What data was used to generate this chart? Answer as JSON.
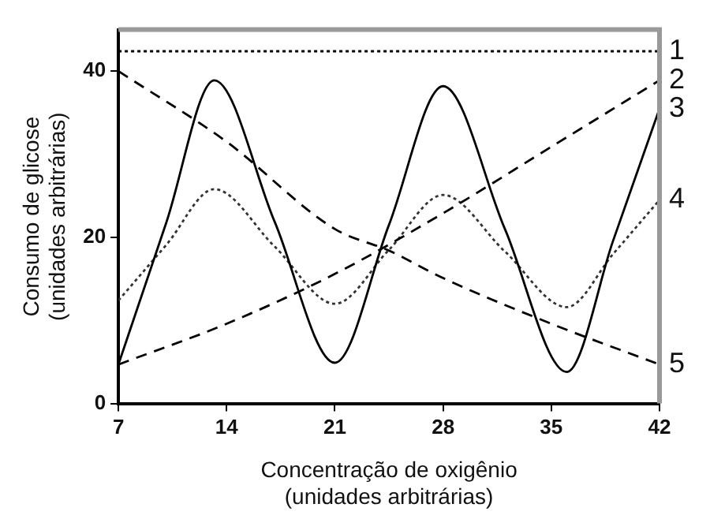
{
  "chart_data": {
    "type": "line",
    "xlabel": "Concentração de oxigênio\n(unidades arbitrárias)",
    "ylabel": "Consumo de glicose\n(unidades arbitrárias)",
    "xlim": [
      7,
      42
    ],
    "xticks": [
      7,
      14,
      21,
      28,
      35,
      42
    ],
    "ylim": [
      0,
      45
    ],
    "yticks": [
      0,
      20,
      40
    ],
    "grid": false,
    "legend": false,
    "marker": "none",
    "series": [
      {
        "name": "1",
        "color": "#000000",
        "line_style": "dotted",
        "x": [
          7,
          42
        ],
        "values": [
          42.4,
          42.4
        ]
      },
      {
        "name": "2",
        "color": "#000000",
        "line_style": "dashed",
        "x": [
          7,
          14,
          21,
          28,
          35,
          42
        ],
        "values": [
          4.7,
          9.6,
          15.6,
          22.9,
          30.9,
          38.9
        ]
      },
      {
        "name": "3",
        "color": "#000000",
        "line_style": "solid",
        "x": [
          7,
          10.1,
          13.2,
          17.1,
          21,
          24.5,
          28,
          32,
          36,
          39,
          42
        ],
        "values": [
          4.7,
          21.8,
          38.9,
          21.9,
          4.9,
          21.5,
          38.2,
          21,
          3.8,
          19.6,
          35.5
        ]
      },
      {
        "name": "4",
        "color": "#333333",
        "line_style": "dotted",
        "x": [
          7,
          10.1,
          13.2,
          17.1,
          21,
          24.5,
          28,
          32,
          36,
          39,
          42
        ],
        "values": [
          12.4,
          19.1,
          25.8,
          18.9,
          12,
          18.5,
          25.1,
          18.3,
          11.6,
          18,
          24.5
        ]
      },
      {
        "name": "5",
        "color": "#000000",
        "line_style": "dashed",
        "x": [
          7,
          14,
          21,
          24.5,
          28,
          35,
          42
        ],
        "values": [
          40,
          31.5,
          21,
          18.4,
          15.1,
          9.6,
          4.7
        ]
      }
    ]
  }
}
